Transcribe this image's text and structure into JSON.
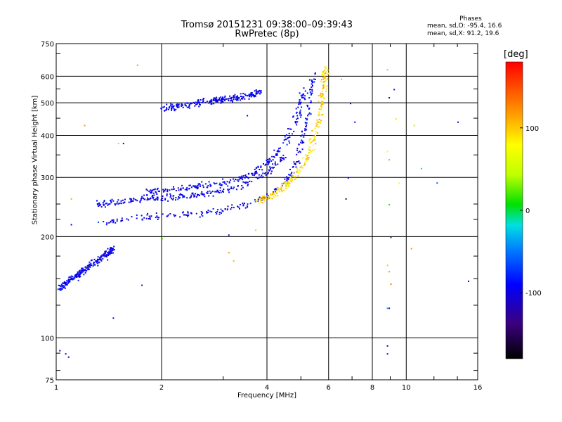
{
  "chart_data": {
    "type": "scatter",
    "title": "Tromsø 20151231 09:38:00–09:39:43",
    "subtitle": "RwPretec (8p)",
    "xlabel": "Frequency [MHz]",
    "ylabel": "Stationary phase Virtual Height [km]",
    "x_scale": "log",
    "y_scale": "log",
    "xlim": [
      1,
      16
    ],
    "ylim": [
      75,
      750
    ],
    "x_ticks": [
      "1",
      "2",
      "4",
      "6",
      "8",
      "10",
      "16"
    ],
    "x_tick_values": [
      1,
      2,
      4,
      6,
      8,
      10,
      16
    ],
    "y_ticks": [
      "750",
      "600",
      "500",
      "400",
      "300",
      "200",
      "100",
      "75"
    ],
    "y_tick_values": [
      750,
      600,
      500,
      400,
      300,
      200,
      100,
      75
    ],
    "grid": true,
    "stats": {
      "heading": "Phases",
      "o_mode": "mean, sd,O: -95.4, 16.6",
      "x_mode": "mean, sd,X: 91.2, 19.6"
    },
    "colorbar": {
      "unit": "[deg]",
      "range": [
        -180,
        180
      ],
      "ticks": [
        "100",
        "0",
        "-100"
      ],
      "tick_values": [
        100,
        0,
        -100
      ]
    },
    "series": [
      {
        "mode": "O",
        "phase_mean": -95.4,
        "phase_sd": 16.6,
        "traces": [
          {
            "desc": "lower cusp",
            "x": [
              1.02,
              1.05,
              1.1,
              1.15,
              1.2,
              1.25,
              1.3,
              1.35,
              1.4,
              1.45
            ],
            "y": [
              140,
              145,
              150,
              155,
              160,
              165,
              170,
              175,
              180,
              185
            ]
          },
          {
            "desc": "F1 layer",
            "x": [
              1.3,
              1.5,
              1.8,
              2.0,
              2.5,
              3.0,
              3.5,
              4.0,
              4.5,
              4.8,
              5.0,
              5.2,
              5.3,
              5.4
            ],
            "y": [
              220,
              225,
              230,
              232,
              235,
              240,
              250,
              265,
              290,
              330,
              380,
              450,
              530,
              620
            ]
          },
          {
            "desc": "F layer upper trace",
            "x": [
              1.3,
              1.5,
              1.8,
              2.0,
              2.3,
              2.6,
              3.0,
              3.5,
              4.0,
              4.5
            ],
            "y": [
              250,
              255,
              260,
              262,
              265,
              268,
              275,
              290,
              310,
              350
            ]
          },
          {
            "desc": "F2 layer",
            "x": [
              1.8,
              2.0,
              2.3,
              2.6,
              3.0,
              3.4,
              3.8,
              4.2,
              4.6,
              4.9,
              5.1
            ],
            "y": [
              270,
              275,
              280,
              285,
              290,
              300,
              320,
              350,
              400,
              470,
              560
            ]
          },
          {
            "desc": "multi-hop echo",
            "x": [
              2.0,
              2.2,
              2.5,
              2.8,
              3.0,
              3.3,
              3.6,
              3.8
            ],
            "y": [
              480,
              490,
              500,
              510,
              515,
              520,
              530,
              545
            ]
          }
        ]
      },
      {
        "mode": "X",
        "phase_mean": 91.2,
        "phase_sd": 19.6,
        "traces": [
          {
            "desc": "X trace",
            "x": [
              3.7,
              4.0,
              4.3,
              4.6,
              5.0,
              5.3,
              5.5,
              5.7,
              5.8,
              5.9
            ],
            "y": [
              255,
              262,
              275,
              290,
              320,
              360,
              420,
              500,
              580,
              640
            ]
          }
        ]
      }
    ],
    "scattered_points": [
      {
        "x": 1.7,
        "y": 650,
        "phase": 120
      },
      {
        "x": 8.8,
        "y": 630,
        "phase": 110
      },
      {
        "x": 9.2,
        "y": 550,
        "phase": -100
      },
      {
        "x": 8.9,
        "y": 520,
        "phase": -120
      },
      {
        "x": 9.3,
        "y": 450,
        "phase": 90
      },
      {
        "x": 10.5,
        "y": 430,
        "phase": 40
      },
      {
        "x": 14.0,
        "y": 440,
        "phase": -110
      },
      {
        "x": 8.8,
        "y": 360,
        "phase": 80
      },
      {
        "x": 8.9,
        "y": 340,
        "phase": 20
      },
      {
        "x": 11.0,
        "y": 320,
        "phase": -10
      },
      {
        "x": 9.5,
        "y": 290,
        "phase": 80
      },
      {
        "x": 12.2,
        "y": 290,
        "phase": -60
      },
      {
        "x": 8.9,
        "y": 250,
        "phase": 10
      },
      {
        "x": 9.0,
        "y": 200,
        "phase": -140
      },
      {
        "x": 10.3,
        "y": 185,
        "phase": 120
      },
      {
        "x": 8.8,
        "y": 165,
        "phase": 100
      },
      {
        "x": 8.9,
        "y": 158,
        "phase": 120
      },
      {
        "x": 9.0,
        "y": 145,
        "phase": 130
      },
      {
        "x": 15.0,
        "y": 148,
        "phase": -100
      },
      {
        "x": 8.8,
        "y": 123,
        "phase": -40
      },
      {
        "x": 8.9,
        "y": 123,
        "phase": -120
      },
      {
        "x": 8.8,
        "y": 95,
        "phase": -120
      },
      {
        "x": 8.8,
        "y": 90,
        "phase": -100
      },
      {
        "x": 1.08,
        "y": 88,
        "phase": -120
      },
      {
        "x": 1.06,
        "y": 90,
        "phase": -110
      },
      {
        "x": 1.02,
        "y": 92,
        "phase": -100
      },
      {
        "x": 3.1,
        "y": 180,
        "phase": 120
      },
      {
        "x": 3.2,
        "y": 170,
        "phase": 110
      },
      {
        "x": 3.1,
        "y": 203,
        "phase": -100
      },
      {
        "x": 1.75,
        "y": 144,
        "phase": -130
      },
      {
        "x": 1.2,
        "y": 430,
        "phase": 120
      },
      {
        "x": 3.5,
        "y": 460,
        "phase": -100
      },
      {
        "x": 6.5,
        "y": 590,
        "phase": 110
      },
      {
        "x": 6.9,
        "y": 500,
        "phase": -110
      },
      {
        "x": 7.1,
        "y": 440,
        "phase": -100
      },
      {
        "x": 6.8,
        "y": 300,
        "phase": -100
      },
      {
        "x": 6.7,
        "y": 260,
        "phase": -150
      },
      {
        "x": 1.5,
        "y": 380,
        "phase": 100
      },
      {
        "x": 1.55,
        "y": 380,
        "phase": -100
      },
      {
        "x": 1.45,
        "y": 115,
        "phase": -120
      },
      {
        "x": 1.1,
        "y": 218,
        "phase": -90
      },
      {
        "x": 1.1,
        "y": 260,
        "phase": 110
      },
      {
        "x": 2.0,
        "y": 198,
        "phase": 20
      },
      {
        "x": 3.7,
        "y": 210,
        "phase": 100
      }
    ]
  }
}
